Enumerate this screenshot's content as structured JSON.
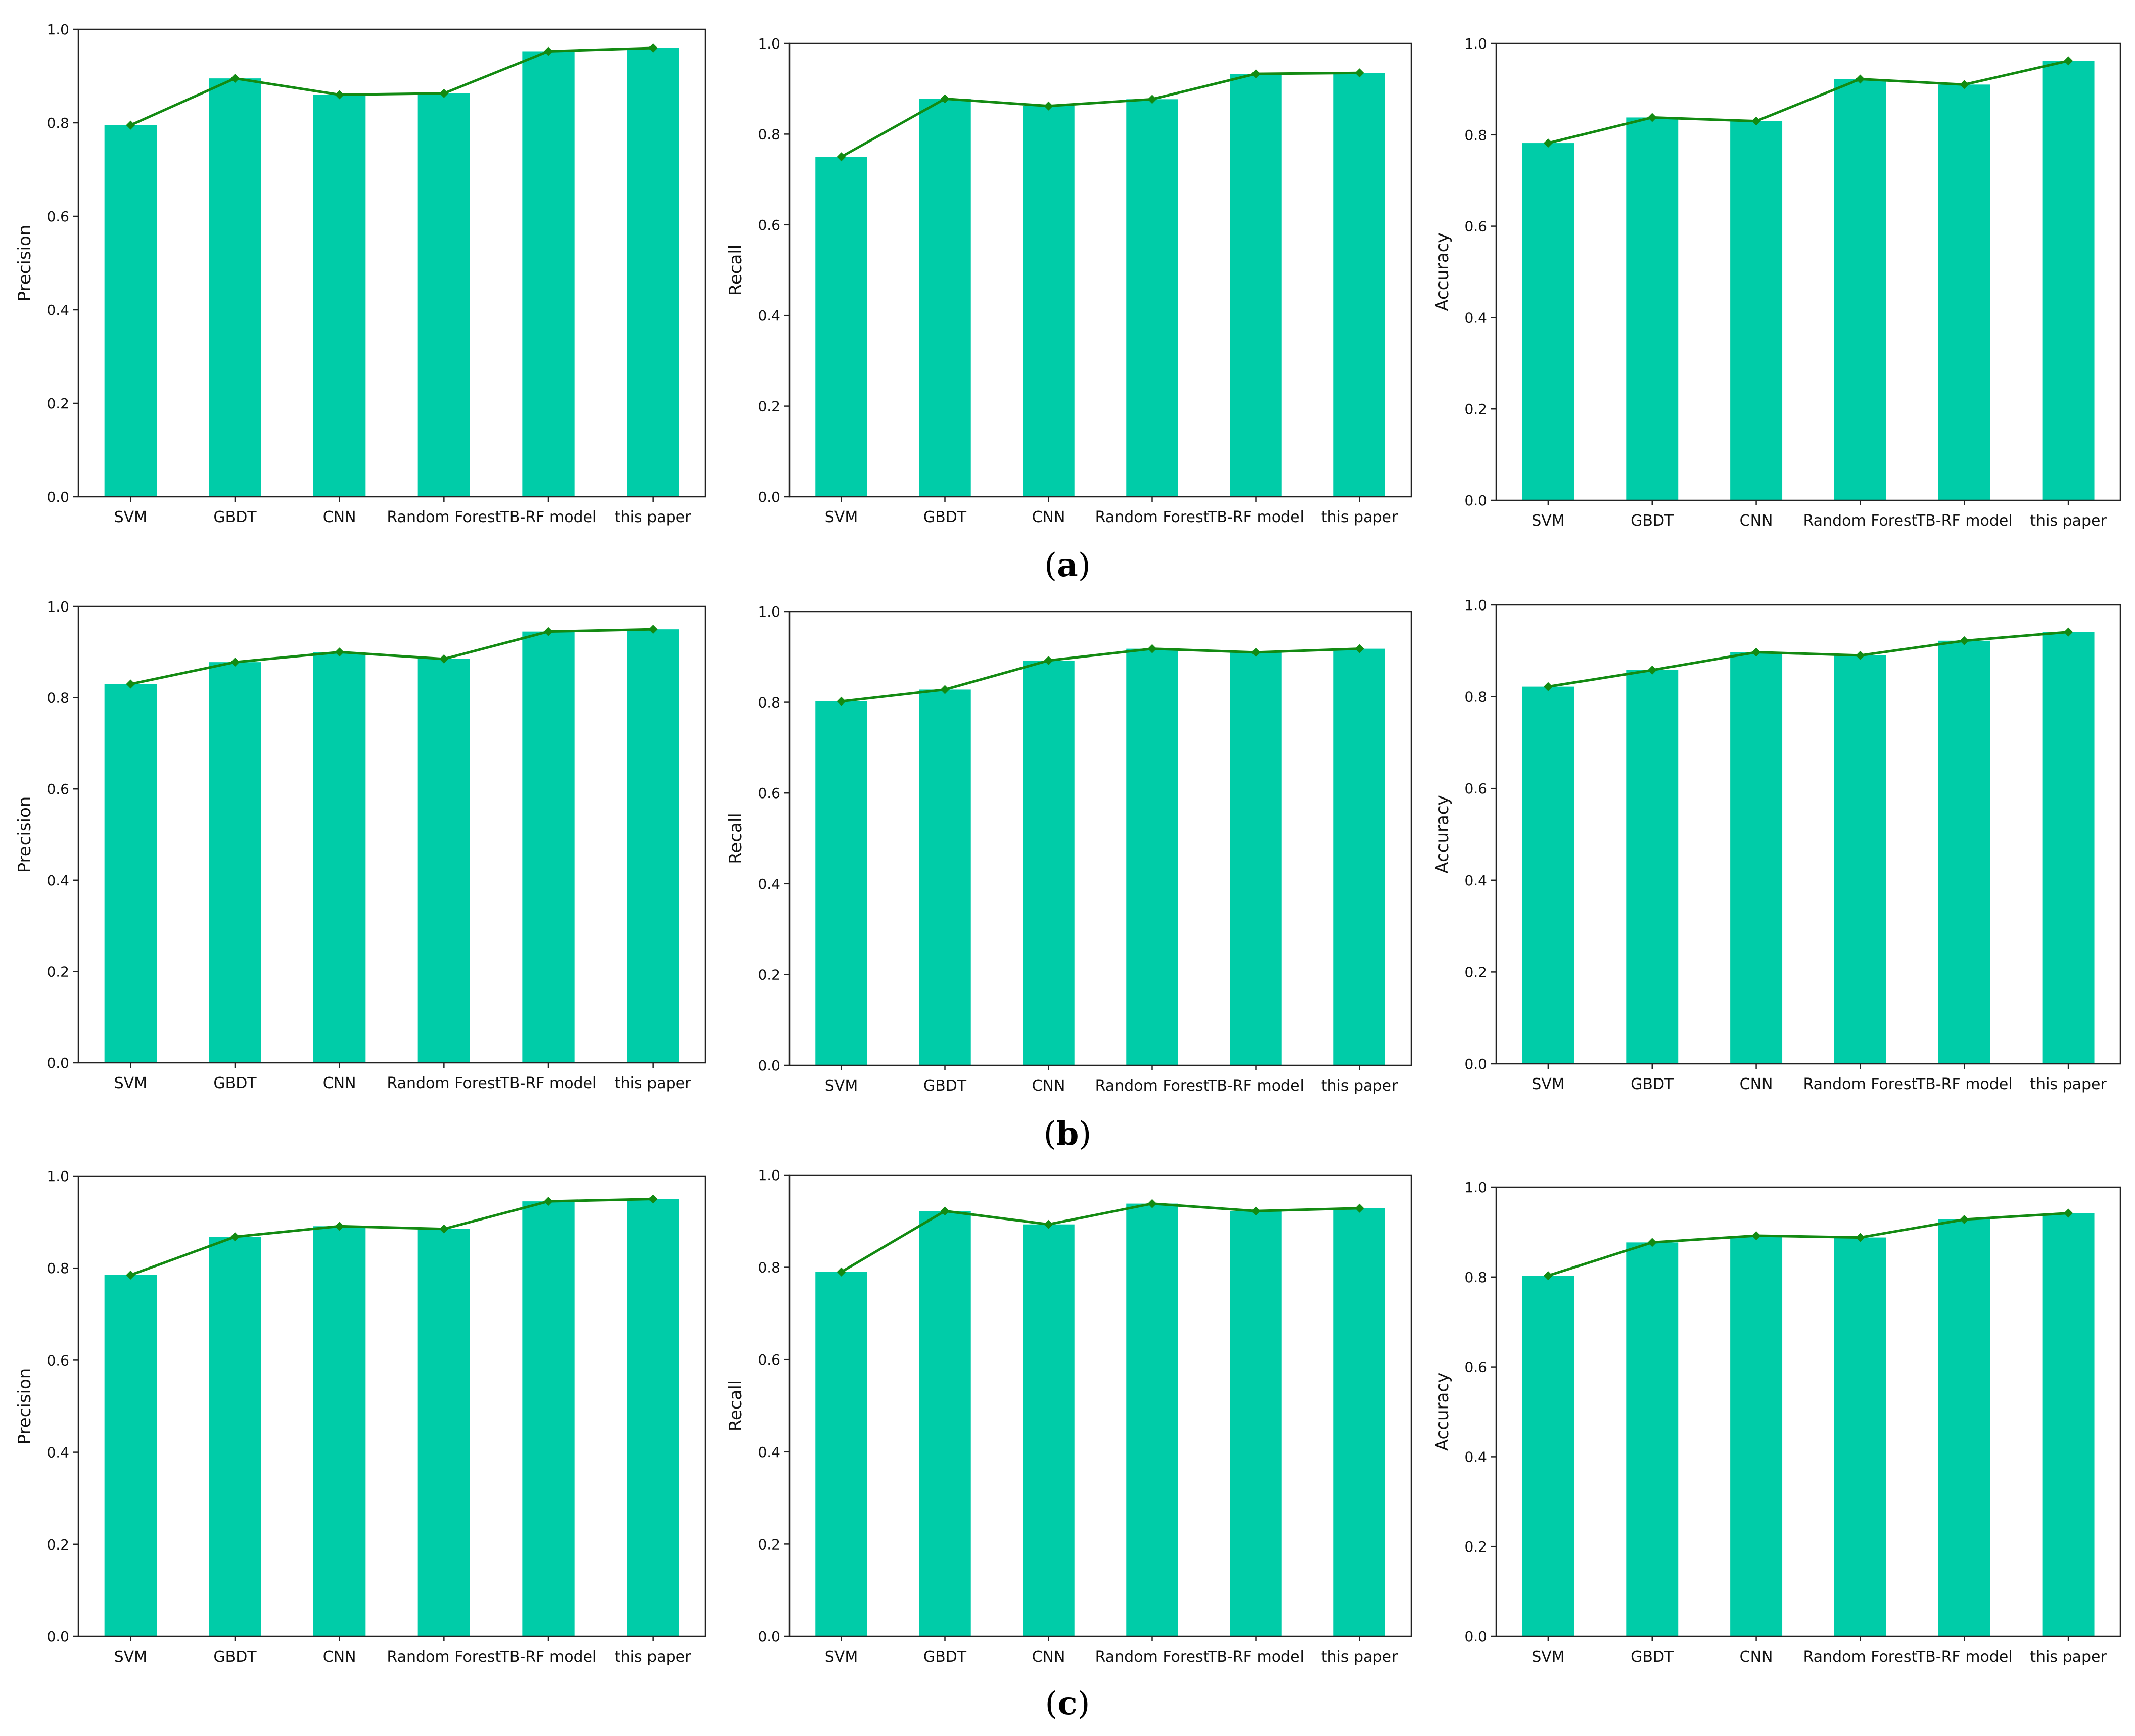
{
  "colors": {
    "bar": "#00CCA8",
    "line": "#138A12",
    "marker": "#138A12",
    "axis": "#222222"
  },
  "captions": [
    "a",
    "b",
    "c"
  ],
  "chart_data": [
    {
      "type": "bar",
      "group": "a",
      "categories": [
        "SVM",
        "GBDT",
        "CNN",
        "Random Forest",
        "TB-RF model",
        "this paper"
      ],
      "values": [
        0.795,
        0.895,
        0.86,
        0.863,
        0.953,
        0.96
      ],
      "series": [
        {
          "values": [
            0.795,
            0.895,
            0.86,
            0.863,
            0.953,
            0.96
          ]
        }
      ],
      "overlay_line": true,
      "ylabel": "Precision",
      "ylim": [
        0,
        1
      ],
      "yticks": [
        "0.0",
        "0.2",
        "0.4",
        "0.6",
        "0.8",
        "1.0"
      ],
      "grid": false
    },
    {
      "type": "bar",
      "group": "a",
      "categories": [
        "SVM",
        "GBDT",
        "CNN",
        "Random Forest",
        "TB-RF model",
        "this paper"
      ],
      "values": [
        0.75,
        0.878,
        0.862,
        0.877,
        0.933,
        0.935
      ],
      "series": [
        {
          "values": [
            0.75,
            0.878,
            0.862,
            0.877,
            0.933,
            0.935
          ]
        }
      ],
      "overlay_line": true,
      "ylabel": "Recall",
      "ylim": [
        0,
        1
      ],
      "yticks": [
        "0.0",
        "0.2",
        "0.4",
        "0.6",
        "0.8",
        "1.0"
      ],
      "grid": false
    },
    {
      "type": "bar",
      "group": "a",
      "categories": [
        "SVM",
        "GBDT",
        "CNN",
        "Random Forest",
        "TB-RF model",
        "this paper"
      ],
      "values": [
        0.782,
        0.838,
        0.83,
        0.922,
        0.91,
        0.962
      ],
      "series": [
        {
          "values": [
            0.782,
            0.838,
            0.83,
            0.922,
            0.91,
            0.962
          ]
        }
      ],
      "overlay_line": true,
      "ylabel": "Accuracy",
      "ylim": [
        0,
        1
      ],
      "yticks": [
        "0.0",
        "0.2",
        "0.4",
        "0.6",
        "0.8",
        "1.0"
      ],
      "grid": false
    },
    {
      "type": "bar",
      "group": "b",
      "categories": [
        "SVM",
        "GBDT",
        "CNN",
        "Random Forest",
        "TB-RF model",
        "this paper"
      ],
      "values": [
        0.83,
        0.878,
        0.9,
        0.885,
        0.945,
        0.95
      ],
      "series": [
        {
          "values": [
            0.83,
            0.878,
            0.9,
            0.885,
            0.945,
            0.95
          ]
        }
      ],
      "overlay_line": true,
      "ylabel": "Precision",
      "ylim": [
        0,
        1
      ],
      "yticks": [
        "0.0",
        "0.2",
        "0.4",
        "0.6",
        "0.8",
        "1.0"
      ],
      "grid": false
    },
    {
      "type": "bar",
      "group": "b",
      "categories": [
        "SVM",
        "GBDT",
        "CNN",
        "Random Forest",
        "TB-RF model",
        "this paper"
      ],
      "values": [
        0.802,
        0.828,
        0.892,
        0.918,
        0.91,
        0.918
      ],
      "series": [
        {
          "values": [
            0.802,
            0.828,
            0.892,
            0.918,
            0.91,
            0.918
          ]
        }
      ],
      "overlay_line": true,
      "ylabel": "Recall",
      "ylim": [
        0,
        1
      ],
      "yticks": [
        "0.0",
        "0.2",
        "0.4",
        "0.6",
        "0.8",
        "1.0"
      ],
      "grid": false
    },
    {
      "type": "bar",
      "group": "b",
      "categories": [
        "SVM",
        "GBDT",
        "CNN",
        "Random Forest",
        "TB-RF model",
        "this paper"
      ],
      "values": [
        0.822,
        0.858,
        0.897,
        0.89,
        0.922,
        0.941
      ],
      "series": [
        {
          "values": [
            0.822,
            0.858,
            0.897,
            0.89,
            0.922,
            0.941
          ]
        }
      ],
      "overlay_line": true,
      "ylabel": "Accuracy",
      "ylim": [
        0,
        1
      ],
      "yticks": [
        "0.0",
        "0.2",
        "0.4",
        "0.6",
        "0.8",
        "1.0"
      ],
      "grid": false
    },
    {
      "type": "bar",
      "group": "c",
      "categories": [
        "SVM",
        "GBDT",
        "CNN",
        "Random Forest",
        "TB-RF model",
        "this paper"
      ],
      "values": [
        0.785,
        0.868,
        0.891,
        0.885,
        0.945,
        0.95
      ],
      "series": [
        {
          "values": [
            0.785,
            0.868,
            0.891,
            0.885,
            0.945,
            0.95
          ]
        }
      ],
      "overlay_line": true,
      "ylabel": "Precision",
      "ylim": [
        0,
        1
      ],
      "yticks": [
        "0.0",
        "0.2",
        "0.4",
        "0.6",
        "0.8",
        "1.0"
      ],
      "grid": false
    },
    {
      "type": "bar",
      "group": "c",
      "categories": [
        "SVM",
        "GBDT",
        "CNN",
        "Random Forest",
        "TB-RF model",
        "this paper"
      ],
      "values": [
        0.79,
        0.922,
        0.893,
        0.938,
        0.922,
        0.928
      ],
      "series": [
        {
          "values": [
            0.79,
            0.922,
            0.893,
            0.938,
            0.922,
            0.928
          ]
        }
      ],
      "overlay_line": true,
      "ylabel": "Recall",
      "ylim": [
        0,
        1
      ],
      "yticks": [
        "0.0",
        "0.2",
        "0.4",
        "0.6",
        "0.8",
        "1.0"
      ],
      "grid": false
    },
    {
      "type": "bar",
      "group": "c",
      "categories": [
        "SVM",
        "GBDT",
        "CNN",
        "Random Forest",
        "TB-RF model",
        "this paper"
      ],
      "values": [
        0.803,
        0.877,
        0.892,
        0.888,
        0.928,
        0.942
      ],
      "series": [
        {
          "values": [
            0.803,
            0.877,
            0.892,
            0.888,
            0.928,
            0.942
          ]
        }
      ],
      "overlay_line": true,
      "ylabel": "Accuracy",
      "ylim": [
        0,
        1
      ],
      "yticks": [
        "0.0",
        "0.2",
        "0.4",
        "0.6",
        "0.8",
        "1.0"
      ],
      "grid": false
    }
  ]
}
